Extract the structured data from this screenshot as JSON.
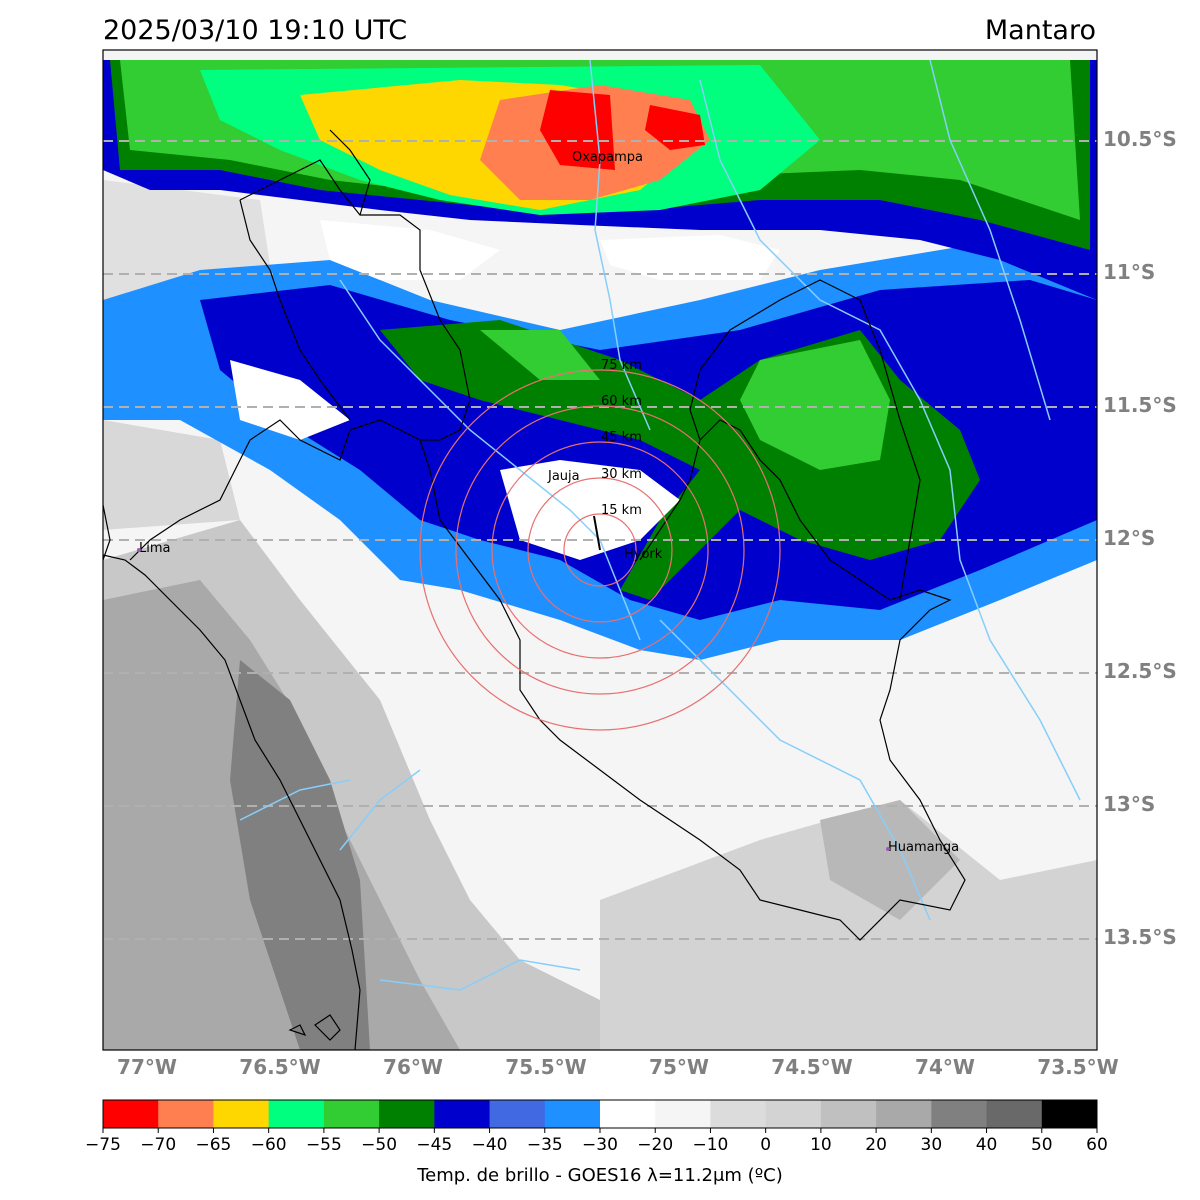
{
  "header": {
    "timestamp": "2025/03/10 19:10 UTC",
    "region": "Mantaro"
  },
  "map": {
    "lat_labels": [
      "10.5°S",
      "11°S",
      "11.5°S",
      "12°S",
      "12.5°S",
      "13°S",
      "13.5°S"
    ],
    "lon_labels": [
      "77°W",
      "76.5°W",
      "76°W",
      "75.5°W",
      "75°W",
      "74.5°W",
      "74°W",
      "73.5°W"
    ],
    "places": [
      {
        "name": "Oxapampa",
        "lon": -75.39,
        "lat": -10.58
      },
      {
        "name": "Jauja",
        "lon": -75.5,
        "lat": -11.78
      },
      {
        "name": "Lima",
        "lon": -77.04,
        "lat": -12.04
      },
      {
        "name": "Hyork",
        "lon": -75.22,
        "lat": -12.04
      },
      {
        "name": "Huamanga",
        "lon": -74.22,
        "lat": -13.16
      }
    ],
    "range_rings": [
      "15 km",
      "30 km",
      "45 km",
      "60 km",
      "75 km"
    ],
    "colors": {
      "rings": "#e87070",
      "rivers": "#87cefa",
      "borders": "#000000",
      "gridlines": "#b0b0b0"
    }
  },
  "colorbar": {
    "title": "Temp. de brillo - GOES16 λ=11.2μm (ºC)",
    "ticks": [
      "−75",
      "−70",
      "−65",
      "−60",
      "−55",
      "−50",
      "−45",
      "−40",
      "−35",
      "−30",
      "−20",
      "−10",
      "0",
      "10",
      "20",
      "30",
      "40",
      "50",
      "60"
    ],
    "colors": [
      "#ff0000",
      "#ff7f50",
      "#ffd700",
      "#00ff7f",
      "#32cd32",
      "#008000",
      "#0000cd",
      "#4169e1",
      "#1e90ff",
      "#ffffff",
      "#f5f5f5",
      "#dcdcdc",
      "#d3d3d3",
      "#c0c0c0",
      "#a9a9a9",
      "#808080",
      "#696969",
      "#000000"
    ]
  }
}
